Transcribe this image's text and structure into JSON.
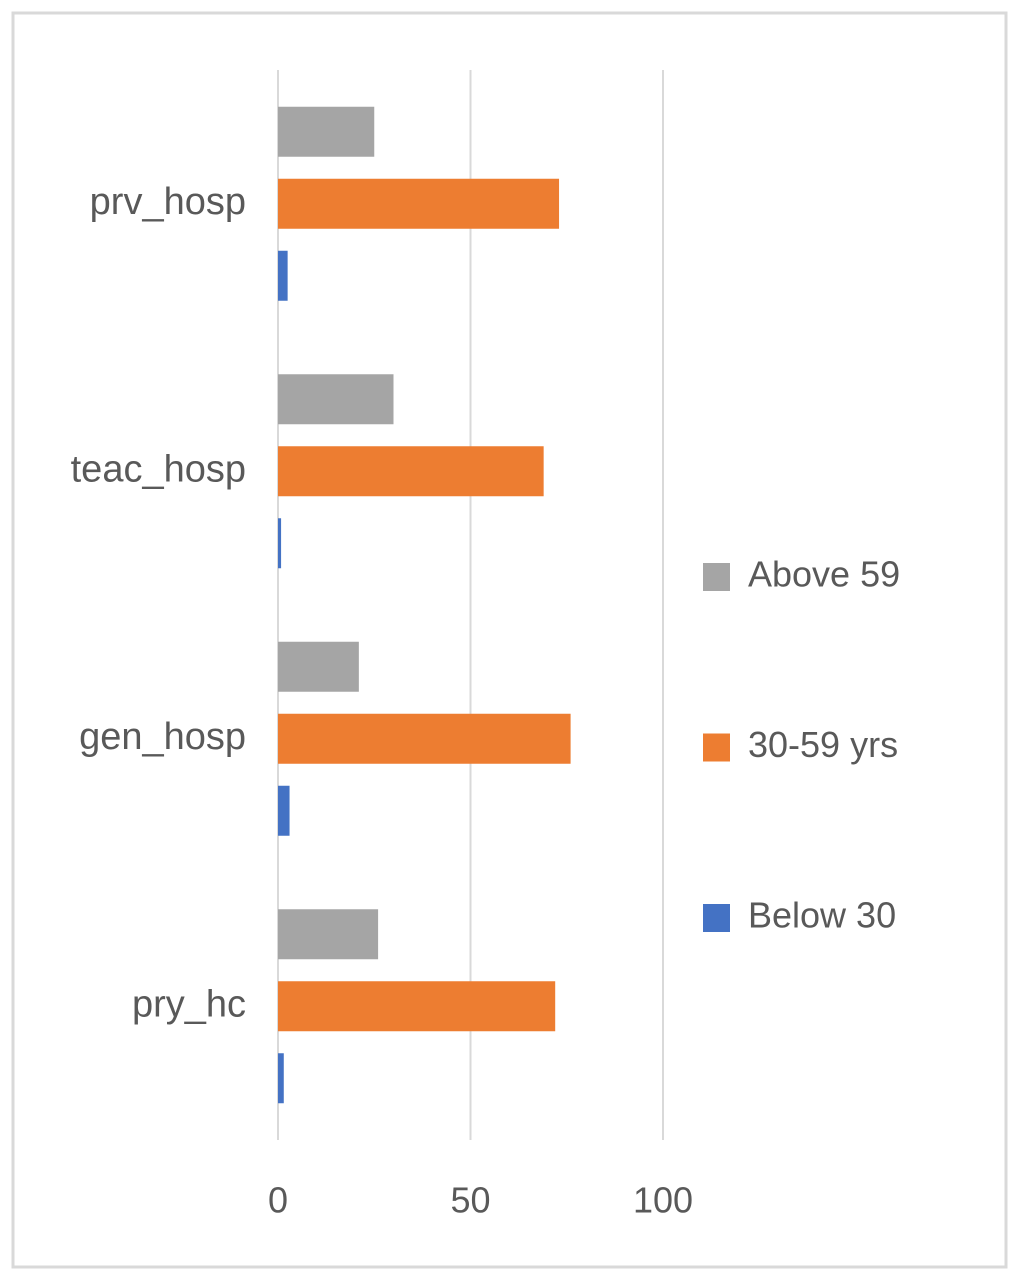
{
  "chart_data": {
    "type": "bar",
    "orientation": "horizontal",
    "categories": [
      "pry_hc",
      "gen_hosp",
      "teac_hosp",
      "prv_hosp"
    ],
    "series": [
      {
        "name": "Below 30",
        "color": "#4472c4",
        "values": [
          1.5,
          3,
          0.8,
          2.5
        ]
      },
      {
        "name": "30-59 yrs",
        "color": "#ed7d31",
        "values": [
          72,
          76,
          69,
          73
        ]
      },
      {
        "name": "Above 59",
        "color": "#a5a5a5",
        "values": [
          26,
          21,
          30,
          25
        ]
      }
    ],
    "xlim": [
      0,
      100
    ],
    "xticks": [
      0,
      50,
      100
    ],
    "grid": true,
    "legend": "right"
  }
}
